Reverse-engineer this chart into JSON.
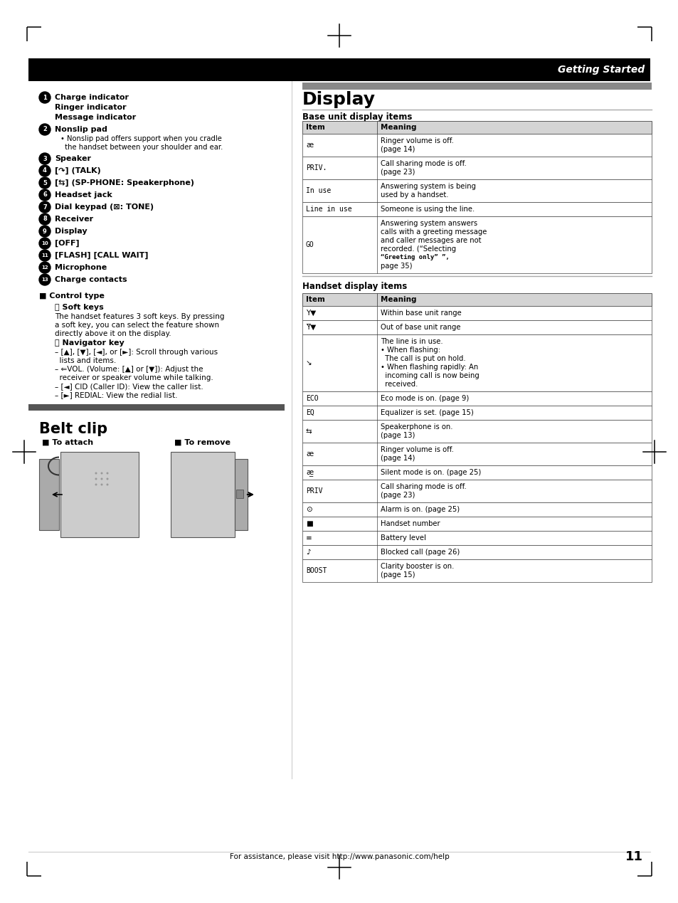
{
  "page_bg": "#ffffff",
  "header_bar_color": "#000000",
  "header_text": "Getting Started",
  "section_bar_color": "#666666",
  "left_items": [
    {
      "num": "1",
      "lines": [
        "Charge indicator",
        "Ringer indicator",
        "Message indicator"
      ],
      "sub": []
    },
    {
      "num": "2",
      "lines": [
        "Nonslip pad"
      ],
      "sub": [
        "Nonslip pad offers support when you cradle",
        "the handset between your shoulder and ear."
      ]
    },
    {
      "num": "3",
      "lines": [
        "Speaker"
      ],
      "sub": []
    },
    {
      "num": "4",
      "lines": [
        "[↷] (TALK)"
      ],
      "sub": []
    },
    {
      "num": "5",
      "lines": [
        "[⇆] (SP-PHONE: Speakerphone)"
      ],
      "sub": []
    },
    {
      "num": "6",
      "lines": [
        "Headset jack"
      ],
      "sub": []
    },
    {
      "num": "7",
      "lines": [
        "Dial keypad (⊠: TONE)"
      ],
      "sub": []
    },
    {
      "num": "8",
      "lines": [
        "Receiver"
      ],
      "sub": []
    },
    {
      "num": "9",
      "lines": [
        "Display"
      ],
      "sub": []
    },
    {
      "num": "10",
      "lines": [
        "[OFF]"
      ],
      "sub": []
    },
    {
      "num": "11",
      "lines": [
        "[FLASH] [CALL WAIT]"
      ],
      "sub": []
    },
    {
      "num": "12",
      "lines": [
        "Microphone"
      ],
      "sub": []
    },
    {
      "num": "13",
      "lines": [
        "Charge contacts"
      ],
      "sub": []
    }
  ],
  "ctrl_title": "■ Control type",
  "ctrl_A_title": "Ⓐ Soft keys",
  "ctrl_A_lines": [
    "The handset features 3 soft keys. By pressing",
    "a soft key, you can select the feature shown",
    "directly above it on the display."
  ],
  "ctrl_B_title": "Ⓑ Navigator key",
  "ctrl_B_lines": [
    "– [▲], [▼], [◄], or [►]: Scroll through various",
    "  lists and items.",
    "– ⇐VOL. (Volume: [▲] or [▼]): Adjust the",
    "  receiver or speaker volume while talking.",
    "– [◄] CID (Caller ID): View the caller list.",
    "– [►] REDIAL: View the redial list."
  ],
  "belt_title": "Belt clip",
  "belt_attach": "■ To attach",
  "belt_remove": "■ To remove",
  "display_title": "Display",
  "base_title": "Base unit display items",
  "base_header": [
    "Item",
    "Meaning"
  ],
  "base_rows": [
    [
      "æ",
      "Ringer volume is off.\n(page 14)"
    ],
    [
      "PRIV.",
      "Call sharing mode is off.\n(page 23)"
    ],
    [
      "In use",
      "Answering system is being\nused by a handset."
    ],
    [
      "Line in use",
      "Someone is using the line."
    ],
    [
      "GO",
      "Answering system answers\ncalls with a greeting message\nand caller messages are not\nrecorded. (“Selecting\n“Greeting only” ”,\npage 35)"
    ]
  ],
  "handset_title": "Handset display items",
  "handset_header": [
    "Item",
    "Meaning"
  ],
  "handset_rows": [
    [
      "Y▼",
      "Within base unit range"
    ],
    [
      "Y̅▼",
      "Out of base unit range"
    ],
    [
      "↘",
      "The line is in use.\n• When flashing:\n  The call is put on hold.\n• When flashing rapidly: An\n  incoming call is now being\n  received."
    ],
    [
      "ECO",
      "Eco mode is on. (page 9)"
    ],
    [
      "EQ",
      "Equalizer is set. (page 15)"
    ],
    [
      "⇆",
      "Speakerphone is on.\n(page 13)"
    ],
    [
      "æ",
      "Ringer volume is off.\n(page 14)"
    ],
    [
      "æ̲",
      "Silent mode is on. (page 25)"
    ],
    [
      "PRIV",
      "Call sharing mode is off.\n(page 23)"
    ],
    [
      "⊙",
      "Alarm is on. (page 25)"
    ],
    [
      "■",
      "Handset number"
    ],
    [
      "≡",
      "Battery level"
    ],
    [
      "♪",
      "Blocked call (page 26)"
    ],
    [
      "BOOST",
      "Clarity booster is on.\n(page 15)"
    ]
  ],
  "footer_text": "For assistance, please visit http://www.panasonic.com/help",
  "page_num": "11"
}
